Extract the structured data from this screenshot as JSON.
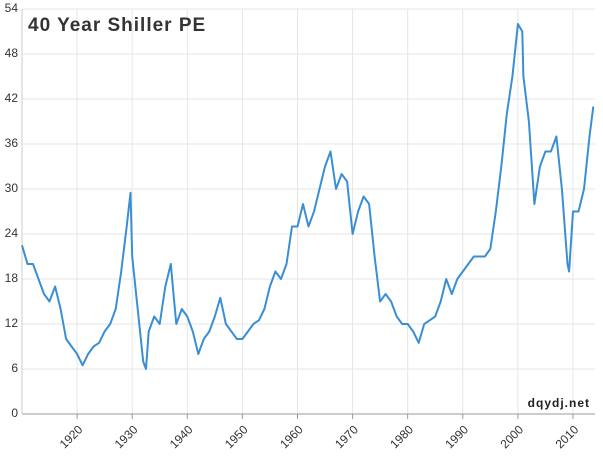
{
  "chart_data": {
    "type": "line",
    "title": "40 Year Shiller PE",
    "annotation": "dqydj.net",
    "color": "#3a8fd4",
    "grid": true,
    "x": [
      1910,
      1911,
      1912,
      1913,
      1914,
      1915,
      1916,
      1917,
      1918,
      1919,
      1920,
      1921,
      1922,
      1923,
      1924,
      1925,
      1926,
      1927,
      1928,
      1929,
      1929.7,
      1930,
      1931,
      1932,
      1932.5,
      1933,
      1934,
      1935,
      1936,
      1937,
      1937.5,
      1938,
      1939,
      1940,
      1941,
      1942,
      1943,
      1944,
      1945,
      1946,
      1947,
      1948,
      1949,
      1950,
      1951,
      1952,
      1953,
      1954,
      1955,
      1956,
      1957,
      1958,
      1959,
      1960,
      1961,
      1962,
      1963,
      1964,
      1965,
      1966,
      1967,
      1968,
      1969,
      1970,
      1971,
      1972,
      1973,
      1974,
      1975,
      1976,
      1977,
      1978,
      1979,
      1980,
      1981,
      1982,
      1983,
      1984,
      1985,
      1986,
      1987,
      1988,
      1989,
      1990,
      1991,
      1992,
      1993,
      1994,
      1995,
      1996,
      1997,
      1998,
      1999,
      2000,
      2000.8,
      2001,
      2002,
      2003,
      2004,
      2005,
      2006,
      2007,
      2008,
      2009,
      2009.3,
      2010,
      2011,
      2012,
      2013,
      2013.7
    ],
    "values": [
      22.5,
      20,
      20,
      18,
      16,
      15,
      17,
      14,
      10,
      9,
      8,
      6.5,
      8,
      9,
      9.5,
      11,
      12,
      14,
      19,
      25,
      29.5,
      21,
      14,
      7,
      6,
      11,
      13,
      12,
      17,
      20,
      16,
      12,
      14,
      13,
      11,
      8,
      10,
      11,
      13,
      15.5,
      12,
      11,
      10,
      10,
      11,
      12,
      12.5,
      14,
      17,
      19,
      18,
      20,
      25,
      25,
      28,
      25,
      27,
      30,
      33,
      35,
      30,
      32,
      31,
      24,
      27,
      29,
      28,
      21,
      15,
      16,
      15,
      13,
      12,
      12,
      11,
      9.5,
      12,
      12.5,
      13,
      15,
      18,
      16,
      18,
      19,
      20,
      21,
      21,
      21,
      22,
      27,
      33,
      40,
      45,
      52,
      51,
      45,
      39,
      28,
      33,
      35,
      35,
      37,
      30,
      20,
      19,
      27,
      27,
      30,
      37,
      41
    ],
    "xlim": [
      1910,
      2014
    ],
    "xticks": [
      1920,
      1930,
      1940,
      1950,
      1960,
      1970,
      1980,
      1990,
      2000,
      2010
    ],
    "ylim": [
      0,
      54
    ],
    "yticks": [
      0,
      6,
      12,
      18,
      24,
      30,
      36,
      42,
      48,
      54
    ]
  }
}
